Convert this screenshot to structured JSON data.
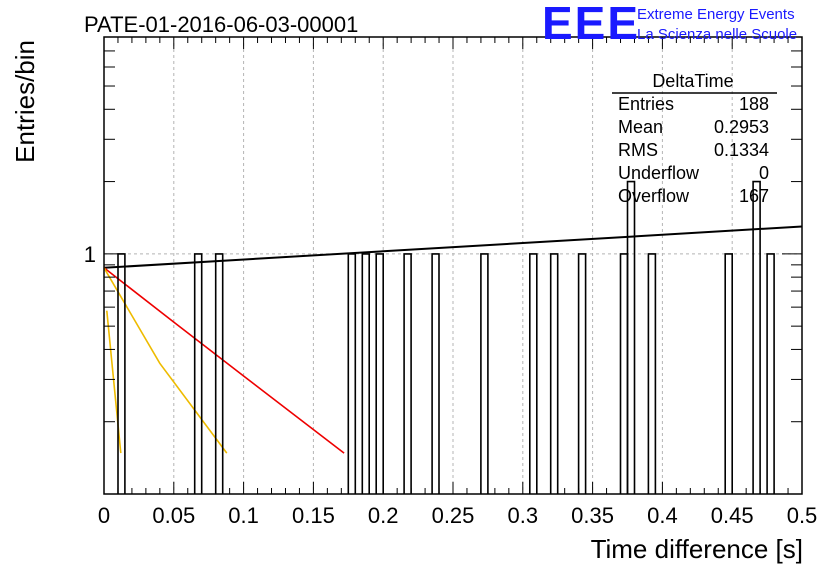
{
  "chart_data": {
    "type": "histogram",
    "title": "PATE-01-2016-06-03-00001",
    "xlabel": "Time difference [s]",
    "ylabel": "Entries/bin",
    "y_scale": "log",
    "xlim": [
      0,
      0.5
    ],
    "ylim": [
      0.1,
      8
    ],
    "grid": true,
    "x_ticks": [
      "0",
      "0.05",
      "0.1",
      "0.15",
      "0.2",
      "0.25",
      "0.3",
      "0.35",
      "0.4",
      "0.45",
      "0.5"
    ],
    "y_ticks": [
      "1"
    ],
    "bin_width": 0.005,
    "bins": [
      {
        "x": 0.01,
        "value": 1
      },
      {
        "x": 0.065,
        "value": 1
      },
      {
        "x": 0.08,
        "value": 1
      },
      {
        "x": 0.175,
        "value": 1
      },
      {
        "x": 0.185,
        "value": 1
      },
      {
        "x": 0.195,
        "value": 1
      },
      {
        "x": 0.215,
        "value": 1
      },
      {
        "x": 0.235,
        "value": 1
      },
      {
        "x": 0.27,
        "value": 1
      },
      {
        "x": 0.305,
        "value": 1
      },
      {
        "x": 0.32,
        "value": 1
      },
      {
        "x": 0.34,
        "value": 1
      },
      {
        "x": 0.37,
        "value": 1
      },
      {
        "x": 0.375,
        "value": 2
      },
      {
        "x": 0.39,
        "value": 1
      },
      {
        "x": 0.445,
        "value": 1
      },
      {
        "x": 0.465,
        "value": 2
      },
      {
        "x": 0.475,
        "value": 1
      }
    ],
    "fits": [
      {
        "color": "#000000",
        "points": [
          [
            0,
            0.875
          ],
          [
            0.5,
            1.3
          ]
        ]
      },
      {
        "color": "#ee0000",
        "points": [
          [
            0,
            0.875
          ],
          [
            0.05,
            0.52
          ],
          [
            0.1,
            0.31
          ],
          [
            0.172,
            0.148
          ]
        ]
      },
      {
        "color": "#eebb00",
        "points": [
          [
            0,
            0.875
          ],
          [
            0.04,
            0.35
          ],
          [
            0.088,
            0.148
          ]
        ]
      },
      {
        "color": "#eebb00",
        "points": [
          [
            0.002,
            0.58
          ],
          [
            0.012,
            0.148
          ]
        ]
      }
    ],
    "stats_box": {
      "title": "DeltaTime",
      "rows": [
        {
          "label": "Entries",
          "value": "188"
        },
        {
          "label": "Mean",
          "value": "0.2953"
        },
        {
          "label": "RMS",
          "value": "0.1334"
        },
        {
          "label": "Underflow",
          "value": "0"
        },
        {
          "label": "Overflow",
          "value": "167"
        }
      ]
    }
  },
  "logo": {
    "acronym": "EEE",
    "line1": "Extreme Energy Events",
    "line2": "La Scienza nelle Scuole"
  },
  "colors": {
    "logo": "#1a1aff",
    "histogram": "#000000",
    "grid": "#b4b4b4"
  }
}
